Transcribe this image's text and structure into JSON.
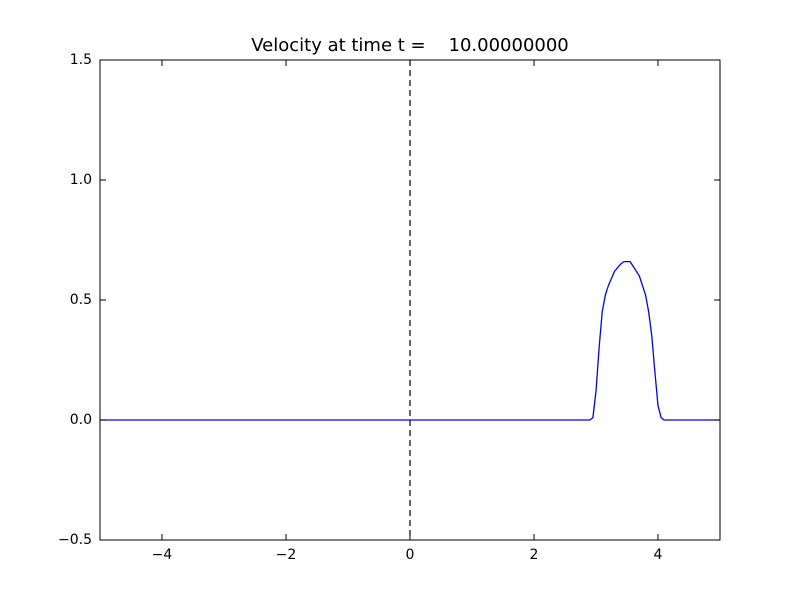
{
  "chart_data": {
    "type": "line",
    "title": "Velocity at time t =    10.00000000",
    "x": [
      -5,
      2.9,
      2.95,
      3.0,
      3.05,
      3.1,
      3.15,
      3.2,
      3.3,
      3.4,
      3.45,
      3.55,
      3.6,
      3.7,
      3.8,
      3.85,
      3.9,
      3.95,
      4.0,
      4.05,
      4.1,
      5
    ],
    "series": [
      {
        "color": "#0000ff",
        "values": [
          0,
          0,
          0.01,
          0.12,
          0.3,
          0.45,
          0.52,
          0.56,
          0.62,
          0.65,
          0.66,
          0.66,
          0.64,
          0.6,
          0.52,
          0.45,
          0.35,
          0.2,
          0.06,
          0.01,
          0,
          0
        ]
      }
    ],
    "vlines": [
      {
        "x": 0,
        "color": "#000000",
        "style": "dashed"
      }
    ],
    "xlim": [
      -5,
      5
    ],
    "ylim": [
      -0.5,
      1.5
    ],
    "xticks": [
      {
        "value": -4,
        "label": "−4"
      },
      {
        "value": -2,
        "label": "−2"
      },
      {
        "value": 0,
        "label": "0"
      },
      {
        "value": 2,
        "label": "2"
      },
      {
        "value": 4,
        "label": "4"
      }
    ],
    "yticks": [
      {
        "value": -0.5,
        "label": "−0.5"
      },
      {
        "value": 0,
        "label": "0.0"
      },
      0.5,
      {
        "value": 1,
        "label": "1.0"
      },
      1.5
    ]
  }
}
